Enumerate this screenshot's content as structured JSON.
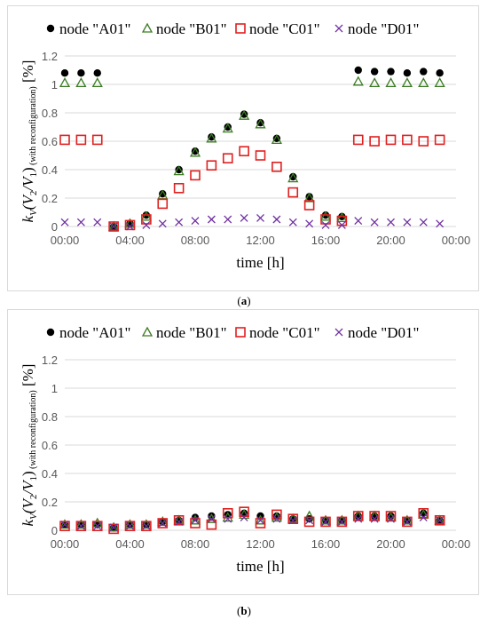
{
  "captions": [
    "a",
    "b"
  ],
  "chart_data": [
    {
      "type": "scatter",
      "xlabel": "time [h]",
      "ylabel_main": "k",
      "ylabel_sub": "V",
      "ylabel_expr": "(V",
      "ylabel_sub2": "2",
      "ylabel_mid": "/V",
      "ylabel_sub1": "1",
      "ylabel_close": ")",
      "ylabel_note": "(with reconfiguration)",
      "ylabel_unit": "[%]",
      "ylim": [
        0,
        1.2
      ],
      "yticks": [
        "0",
        "0.2",
        "0.4",
        "0.6",
        "0.8",
        "1",
        "1.2"
      ],
      "xticks": [
        "00:00",
        "04:00",
        "08:00",
        "12:00",
        "16:00",
        "20:00",
        "00:00"
      ],
      "xlim": [
        0,
        24
      ],
      "legend_position": "top",
      "series": [
        {
          "name": "node \"A01\"",
          "marker": "circle",
          "color": "#000000",
          "x": [
            0,
            1,
            2,
            3,
            4,
            5,
            6,
            7,
            8,
            9,
            10,
            11,
            12,
            13,
            14,
            15,
            16,
            17,
            18,
            19,
            20,
            21,
            22,
            23
          ],
          "y": [
            1.08,
            1.08,
            1.08,
            0.0,
            0.02,
            0.08,
            0.23,
            0.4,
            0.53,
            0.63,
            0.7,
            0.79,
            0.73,
            0.62,
            0.35,
            0.21,
            0.08,
            0.07,
            1.1,
            1.09,
            1.09,
            1.08,
            1.09,
            1.08
          ]
        },
        {
          "name": "node \"B01\"",
          "marker": "triangle",
          "color": "#3a7d22",
          "x": [
            0,
            1,
            2,
            3,
            4,
            5,
            6,
            7,
            8,
            9,
            10,
            11,
            12,
            13,
            14,
            15,
            16,
            17,
            18,
            19,
            20,
            21,
            22,
            23
          ],
          "y": [
            1.01,
            1.01,
            1.01,
            0.0,
            0.02,
            0.07,
            0.22,
            0.39,
            0.52,
            0.62,
            0.69,
            0.78,
            0.72,
            0.61,
            0.34,
            0.2,
            0.07,
            0.06,
            1.02,
            1.01,
            1.01,
            1.01,
            1.01,
            1.01
          ]
        },
        {
          "name": "node \"C01\"",
          "marker": "square",
          "color": "#e02020",
          "x": [
            0,
            1,
            2,
            3,
            4,
            5,
            6,
            7,
            8,
            9,
            10,
            11,
            12,
            13,
            14,
            15,
            16,
            17,
            18,
            19,
            20,
            21,
            22,
            23
          ],
          "y": [
            0.61,
            0.61,
            0.61,
            0.0,
            0.01,
            0.05,
            0.16,
            0.27,
            0.36,
            0.43,
            0.48,
            0.53,
            0.5,
            0.42,
            0.24,
            0.15,
            0.05,
            0.04,
            0.61,
            0.6,
            0.61,
            0.61,
            0.6,
            0.61
          ]
        },
        {
          "name": "node \"D01\"",
          "marker": "x",
          "color": "#7030a0",
          "x": [
            0,
            1,
            2,
            3,
            4,
            5,
            6,
            7,
            8,
            9,
            10,
            11,
            12,
            13,
            14,
            15,
            16,
            17,
            18,
            19,
            20,
            21,
            22,
            23
          ],
          "y": [
            0.03,
            0.03,
            0.03,
            0.0,
            0.0,
            0.01,
            0.02,
            0.03,
            0.04,
            0.05,
            0.05,
            0.06,
            0.06,
            0.05,
            0.03,
            0.02,
            0.01,
            0.01,
            0.04,
            0.03,
            0.03,
            0.03,
            0.03,
            0.02
          ]
        }
      ]
    },
    {
      "type": "scatter",
      "xlabel": "time [h]",
      "ylabel_main": "k",
      "ylabel_sub": "V",
      "ylabel_expr": "(V",
      "ylabel_sub2": "2",
      "ylabel_mid": "/V",
      "ylabel_sub1": "1",
      "ylabel_close": ")",
      "ylabel_note": "(with reconfiguration)",
      "ylabel_unit": "[%]",
      "ylim": [
        0,
        1.2
      ],
      "yticks": [
        "0",
        "0.2",
        "0.4",
        "0.6",
        "0.8",
        "1",
        "1.2"
      ],
      "xticks": [
        "00:00",
        "04:00",
        "08:00",
        "12:00",
        "16:00",
        "20:00",
        "00:00"
      ],
      "xlim": [
        0,
        24
      ],
      "legend_position": "top",
      "series": [
        {
          "name": "node \"A01\"",
          "marker": "circle",
          "color": "#000000",
          "x": [
            0,
            1,
            2,
            3,
            4,
            5,
            6,
            7,
            8,
            9,
            10,
            11,
            12,
            13,
            14,
            15,
            16,
            17,
            18,
            19,
            20,
            21,
            22,
            23
          ],
          "y": [
            0.04,
            0.04,
            0.04,
            0.02,
            0.04,
            0.04,
            0.06,
            0.07,
            0.09,
            0.1,
            0.11,
            0.12,
            0.1,
            0.1,
            0.08,
            0.08,
            0.07,
            0.07,
            0.1,
            0.1,
            0.1,
            0.07,
            0.12,
            0.07
          ]
        },
        {
          "name": "node \"B01\"",
          "marker": "triangle",
          "color": "#3a7d22",
          "x": [
            0,
            1,
            2,
            3,
            4,
            5,
            6,
            7,
            8,
            9,
            10,
            11,
            12,
            13,
            14,
            15,
            16,
            17,
            18,
            19,
            20,
            21,
            22,
            23
          ],
          "y": [
            0.04,
            0.04,
            0.05,
            0.02,
            0.04,
            0.04,
            0.06,
            0.07,
            0.07,
            0.08,
            0.09,
            0.11,
            0.07,
            0.09,
            0.08,
            0.1,
            0.07,
            0.07,
            0.1,
            0.1,
            0.09,
            0.07,
            0.11,
            0.07
          ]
        },
        {
          "name": "node \"C01\"",
          "marker": "square",
          "color": "#e02020",
          "x": [
            0,
            1,
            2,
            3,
            4,
            5,
            6,
            7,
            8,
            9,
            10,
            11,
            12,
            13,
            14,
            15,
            16,
            17,
            18,
            19,
            20,
            21,
            22,
            23
          ],
          "y": [
            0.03,
            0.03,
            0.03,
            0.01,
            0.03,
            0.03,
            0.05,
            0.07,
            0.05,
            0.04,
            0.12,
            0.13,
            0.05,
            0.11,
            0.08,
            0.06,
            0.06,
            0.06,
            0.1,
            0.1,
            0.1,
            0.06,
            0.12,
            0.07
          ]
        },
        {
          "name": "node \"D01\"",
          "marker": "x",
          "color": "#7030a0",
          "x": [
            0,
            1,
            2,
            3,
            4,
            5,
            6,
            7,
            8,
            9,
            10,
            11,
            12,
            13,
            14,
            15,
            16,
            17,
            18,
            19,
            20,
            21,
            22,
            23
          ],
          "y": [
            0.04,
            0.03,
            0.03,
            0.02,
            0.03,
            0.03,
            0.05,
            0.06,
            0.07,
            0.08,
            0.08,
            0.09,
            0.07,
            0.08,
            0.07,
            0.07,
            0.06,
            0.06,
            0.08,
            0.08,
            0.08,
            0.06,
            0.09,
            0.07
          ]
        }
      ]
    }
  ]
}
